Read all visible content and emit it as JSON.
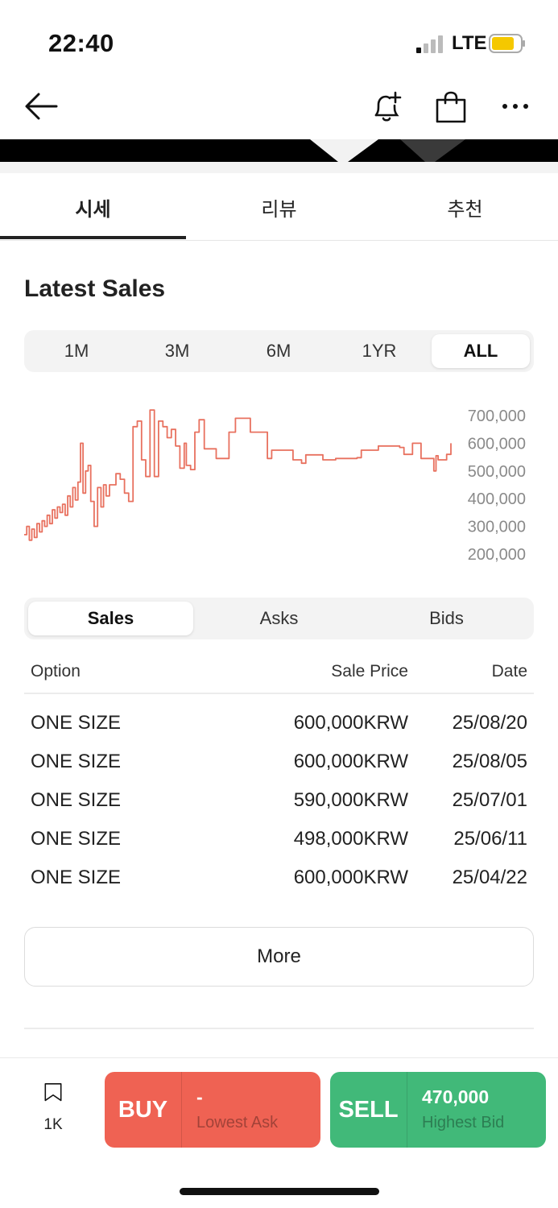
{
  "status_bar": {
    "time": "22:40",
    "network": "LTE"
  },
  "header": {
    "back_icon": "arrow-left-icon",
    "actions": [
      "bell-plus-icon",
      "shopping-bag-icon",
      "more-dots-icon"
    ]
  },
  "tabs": [
    {
      "label": "시세",
      "active": true
    },
    {
      "label": "리뷰",
      "active": false
    },
    {
      "label": "추천",
      "active": false
    }
  ],
  "latest_sales": {
    "title": "Latest Sales",
    "periods": [
      {
        "label": "1M",
        "active": false
      },
      {
        "label": "3M",
        "active": false
      },
      {
        "label": "6M",
        "active": false
      },
      {
        "label": "1YR",
        "active": false
      },
      {
        "label": "ALL",
        "active": true
      }
    ]
  },
  "chart_data": {
    "type": "line",
    "line_style": "step",
    "color": "#e8715f",
    "y_ticks": [
      "700,000",
      "600,000",
      "500,000",
      "400,000",
      "300,000",
      "200,000"
    ],
    "ylim": [
      200000,
      700000
    ],
    "x_range": [
      0,
      100
    ],
    "x": [
      0,
      0.6,
      1.2,
      1.8,
      2.4,
      3,
      3.6,
      4.2,
      4.8,
      5.4,
      6,
      6.6,
      7.2,
      7.8,
      8.4,
      9,
      9.6,
      10.2,
      10.8,
      11.4,
      12,
      12.6,
      13.2,
      13.8,
      14.4,
      15,
      15.6,
      16.4,
      17.2,
      18,
      18.6,
      19.2,
      20,
      21.5,
      22.5,
      23.5,
      24.5,
      25.5,
      26.5,
      27.5,
      28.5,
      29.5,
      30.5,
      31.5,
      32.5,
      33.5,
      34.5,
      35.5,
      36.5,
      37.5,
      38,
      39,
      40,
      41,
      42.2,
      45,
      48,
      49.5,
      53,
      57,
      58,
      63,
      65,
      66,
      70,
      73,
      78,
      79,
      83,
      88,
      89,
      91,
      93,
      96,
      96.5,
      97,
      99,
      100
    ],
    "y": [
      270000,
      300000,
      250000,
      290000,
      260000,
      310000,
      280000,
      320000,
      300000,
      340000,
      310000,
      360000,
      330000,
      370000,
      350000,
      380000,
      340000,
      410000,
      370000,
      440000,
      395000,
      460000,
      600000,
      420000,
      500000,
      520000,
      390000,
      300000,
      440000,
      370000,
      450000,
      410000,
      450000,
      490000,
      470000,
      420000,
      390000,
      660000,
      680000,
      540000,
      480000,
      720000,
      480000,
      680000,
      660000,
      620000,
      650000,
      590000,
      510000,
      600000,
      520000,
      505000,
      640000,
      685000,
      580000,
      545000,
      640000,
      690000,
      640000,
      545000,
      575000,
      540000,
      528000,
      558000,
      540000,
      545000,
      548000,
      575000,
      590000,
      585000,
      560000,
      600000,
      545000,
      500000,
      555000,
      540000,
      560000,
      600000
    ]
  },
  "list_tabs": [
    {
      "label": "Sales",
      "active": true
    },
    {
      "label": "Asks",
      "active": false
    },
    {
      "label": "Bids",
      "active": false
    }
  ],
  "table": {
    "headers": {
      "option": "Option",
      "price": "Sale Price",
      "date": "Date"
    },
    "rows": [
      {
        "option": "ONE SIZE",
        "price": "600,000KRW",
        "date": "25/08/20"
      },
      {
        "option": "ONE SIZE",
        "price": "600,000KRW",
        "date": "25/08/05"
      },
      {
        "option": "ONE SIZE",
        "price": "590,000KRW",
        "date": "25/07/01"
      },
      {
        "option": "ONE SIZE",
        "price": "498,000KRW",
        "date": "25/06/11"
      },
      {
        "option": "ONE SIZE",
        "price": "600,000KRW",
        "date": "25/04/22"
      }
    ],
    "more_label": "More"
  },
  "bottom": {
    "bookmark_count": "1K",
    "buy": {
      "label": "BUY",
      "value": "-",
      "sub": "Lowest Ask",
      "color": "#ef6253"
    },
    "sell": {
      "label": "SELL",
      "value": "470,000",
      "sub": "Highest Bid",
      "color": "#41b979"
    }
  }
}
